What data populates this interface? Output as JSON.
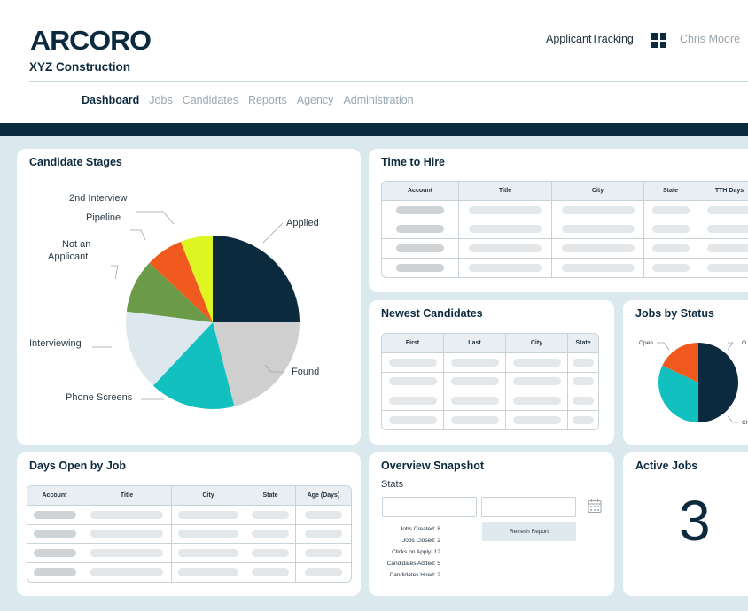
{
  "header": {
    "logo": "ARCORO",
    "company": "XYZ Construction",
    "app_name": "ApplicantTracking",
    "user": "Chris Moore",
    "apps_icon": "grid-icon"
  },
  "nav": {
    "items": [
      {
        "label": "Dashboard",
        "active": true
      },
      {
        "label": "Jobs"
      },
      {
        "label": "Candidates"
      },
      {
        "label": "Reports"
      },
      {
        "label": "Agency"
      },
      {
        "label": "Administration"
      }
    ]
  },
  "candidate_stages": {
    "title": "Candidate Stages",
    "labels": {
      "applied": "Applied",
      "found": "Found",
      "phone": "Phone Screens",
      "interviewing": "Interviewing",
      "not_applicant_1": "Not an",
      "not_applicant_2": "Applicant",
      "pipeline": "Pipeline",
      "second": "2nd Interview"
    }
  },
  "chart_data": [
    {
      "type": "pie",
      "title": "Candidate Stages",
      "categories": [
        "Applied",
        "Found",
        "Phone Screens",
        "Interviewing",
        "Not an Applicant",
        "Pipeline",
        "2nd Interview"
      ],
      "values": [
        25,
        21,
        16,
        15,
        10,
        7,
        6
      ],
      "colors": [
        "#0c2a3e",
        "#cfcfcf",
        "#12c0c0",
        "#dce8ee",
        "#6b9b48",
        "#f05a1e",
        "#ddf521"
      ]
    },
    {
      "type": "pie",
      "title": "Jobs by Status",
      "categories": [
        "Open",
        "Other",
        "Closed"
      ],
      "values": [
        50,
        32,
        18
      ],
      "colors": [
        "#0c2a3e",
        "#12c0c0",
        "#f05a1e"
      ]
    }
  ],
  "time_to_hire": {
    "title": "Time to Hire",
    "columns": [
      "Account",
      "Title",
      "City",
      "State",
      "TTH Days"
    ]
  },
  "newest_candidates": {
    "title": "Newest Candidates",
    "columns": [
      "First",
      "Last",
      "City",
      "State"
    ]
  },
  "jobs_by_status": {
    "title": "Jobs by Status",
    "labels": {
      "open": "Open",
      "other": "O",
      "closed": "Cl"
    }
  },
  "days_open": {
    "title": "Days Open by Job",
    "columns": [
      "Account",
      "Title",
      "City",
      "State",
      "Age (Days)"
    ]
  },
  "overview": {
    "title": "Overview Snapshot",
    "stats_heading": "Stats",
    "refresh_label": "Refresh Report",
    "stats": [
      "Jobs Created: 8",
      "Jobs Closed: 2",
      "Clicks on Apply: 12",
      "Candidates Added: 5",
      "Candidates Hired: 2"
    ]
  },
  "active_jobs": {
    "title": "Active Jobs",
    "count": "3"
  }
}
